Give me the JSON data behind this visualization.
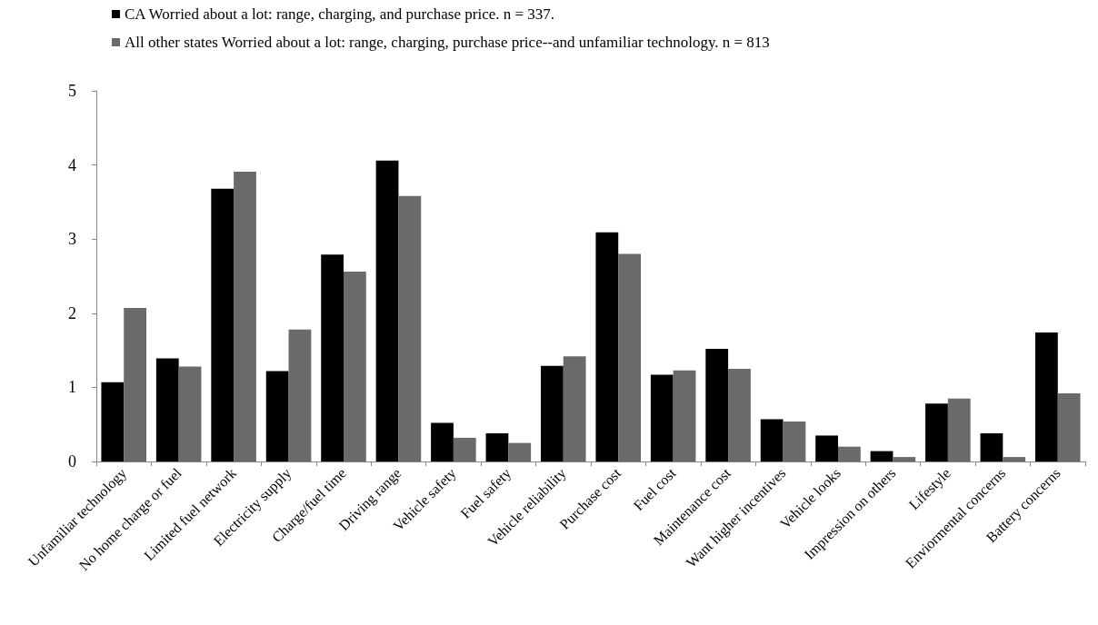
{
  "chart_data": {
    "type": "bar",
    "categories": [
      "Unfamiliar technology",
      "No home charge or fuel",
      "Limited fuel network",
      "Electricity supply",
      "Charge/fuel time",
      "Driving range",
      "Vehicle safety",
      "Fuel safety",
      "Vehicle reliability",
      "Purchase cost",
      "Fuel cost",
      "Maintenance cost",
      "Want higher incentives",
      "Vehicle looks",
      "Impression on others",
      "Lifestyle",
      "Enviormental concerns",
      "Battery concerns"
    ],
    "series": [
      {
        "name": "CA Worried about a lot: range, charging, and purchase price. n = 337.",
        "color": "#000000",
        "values": [
          1.07,
          1.39,
          3.68,
          1.22,
          2.79,
          4.06,
          0.52,
          0.38,
          1.29,
          3.09,
          1.17,
          1.52,
          0.57,
          0.35,
          0.14,
          0.78,
          0.38,
          1.74
        ]
      },
      {
        "name": "All other states Worried about a lot: range, charging, purchase price--and unfamiliar technology. n = 813",
        "color": "#6a6a6a",
        "values": [
          2.07,
          1.28,
          3.91,
          1.78,
          2.56,
          3.58,
          0.32,
          0.25,
          1.42,
          2.8,
          1.23,
          1.25,
          0.54,
          0.2,
          0.06,
          0.85,
          0.06,
          0.92
        ]
      }
    ],
    "ylim": [
      0,
      5
    ],
    "yticks": [
      0,
      1,
      2,
      3,
      4,
      5
    ],
    "grid": false,
    "legend": "top left"
  }
}
